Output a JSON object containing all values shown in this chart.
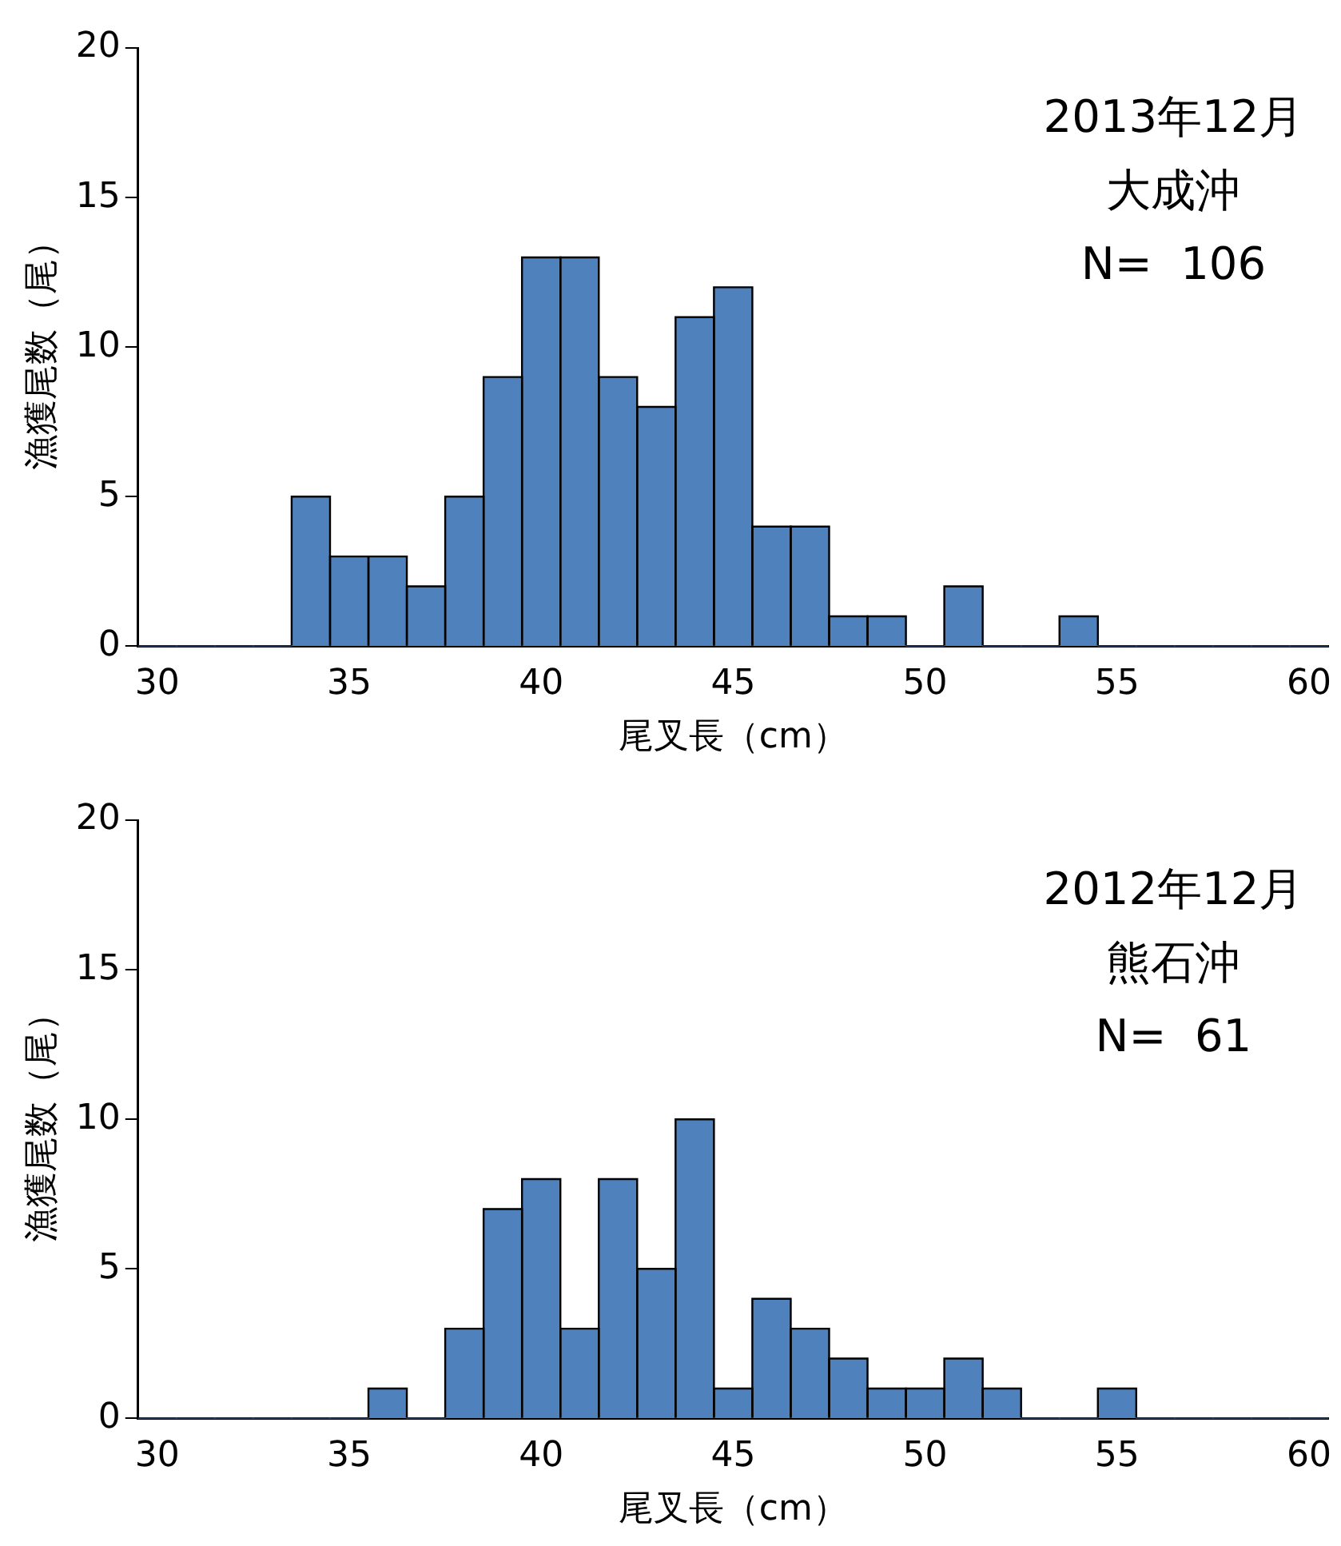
{
  "chart_data": [
    {
      "type": "histogram",
      "xlabel": "尾叉長（cm）",
      "ylabel": "漁獲尾数（尾）",
      "annotations": [
        "2013年12月",
        "大成沖",
        "N=  106"
      ],
      "color": "#4f81bd",
      "bins": [
        29.5,
        30.5,
        31.5,
        32.5,
        33.5,
        34.5,
        35.5,
        36.5,
        37.5,
        38.5,
        39.5,
        40.5,
        41.5,
        42.5,
        43.5,
        44.5,
        45.5,
        46.5,
        47.5,
        48.5,
        49.5,
        50.5,
        51.5,
        52.5,
        53.5,
        54.5,
        55.5,
        56.5,
        57.5,
        58.5,
        59.5,
        60.5
      ],
      "values": [
        0,
        0,
        0,
        0,
        5,
        3,
        3,
        2,
        5,
        9,
        13,
        13,
        9,
        8,
        11,
        12,
        4,
        4,
        1,
        1,
        0,
        2,
        0,
        0,
        1,
        0,
        0,
        0,
        0,
        0,
        0
      ],
      "xlim": [
        29.5,
        60.5
      ],
      "xticks": [
        30,
        35,
        40,
        45,
        50,
        55,
        60
      ],
      "ylim": [
        0,
        20
      ],
      "yticks": [
        0,
        5,
        10,
        15,
        20
      ]
    },
    {
      "type": "histogram",
      "xlabel": "尾叉長（cm）",
      "ylabel": "漁獲尾数（尾）",
      "annotations": [
        "2012年12月",
        "熊石沖",
        "N=  61"
      ],
      "color": "#4f81bd",
      "bins": [
        29.5,
        30.5,
        31.5,
        32.5,
        33.5,
        34.5,
        35.5,
        36.5,
        37.5,
        38.5,
        39.5,
        40.5,
        41.5,
        42.5,
        43.5,
        44.5,
        45.5,
        46.5,
        47.5,
        48.5,
        49.5,
        50.5,
        51.5,
        52.5,
        53.5,
        54.5,
        55.5,
        56.5,
        57.5,
        58.5,
        59.5,
        60.5
      ],
      "values": [
        0,
        0,
        0,
        0,
        0,
        0,
        1,
        0,
        3,
        7,
        8,
        3,
        8,
        5,
        10,
        1,
        4,
        3,
        2,
        1,
        1,
        2,
        1,
        0,
        0,
        1,
        0,
        0,
        0,
        0,
        0
      ],
      "xlim": [
        29.5,
        60.5
      ],
      "xticks": [
        30,
        35,
        40,
        45,
        50,
        55,
        60
      ],
      "ylim": [
        0,
        20
      ],
      "yticks": [
        0,
        5,
        10,
        15,
        20
      ]
    }
  ]
}
